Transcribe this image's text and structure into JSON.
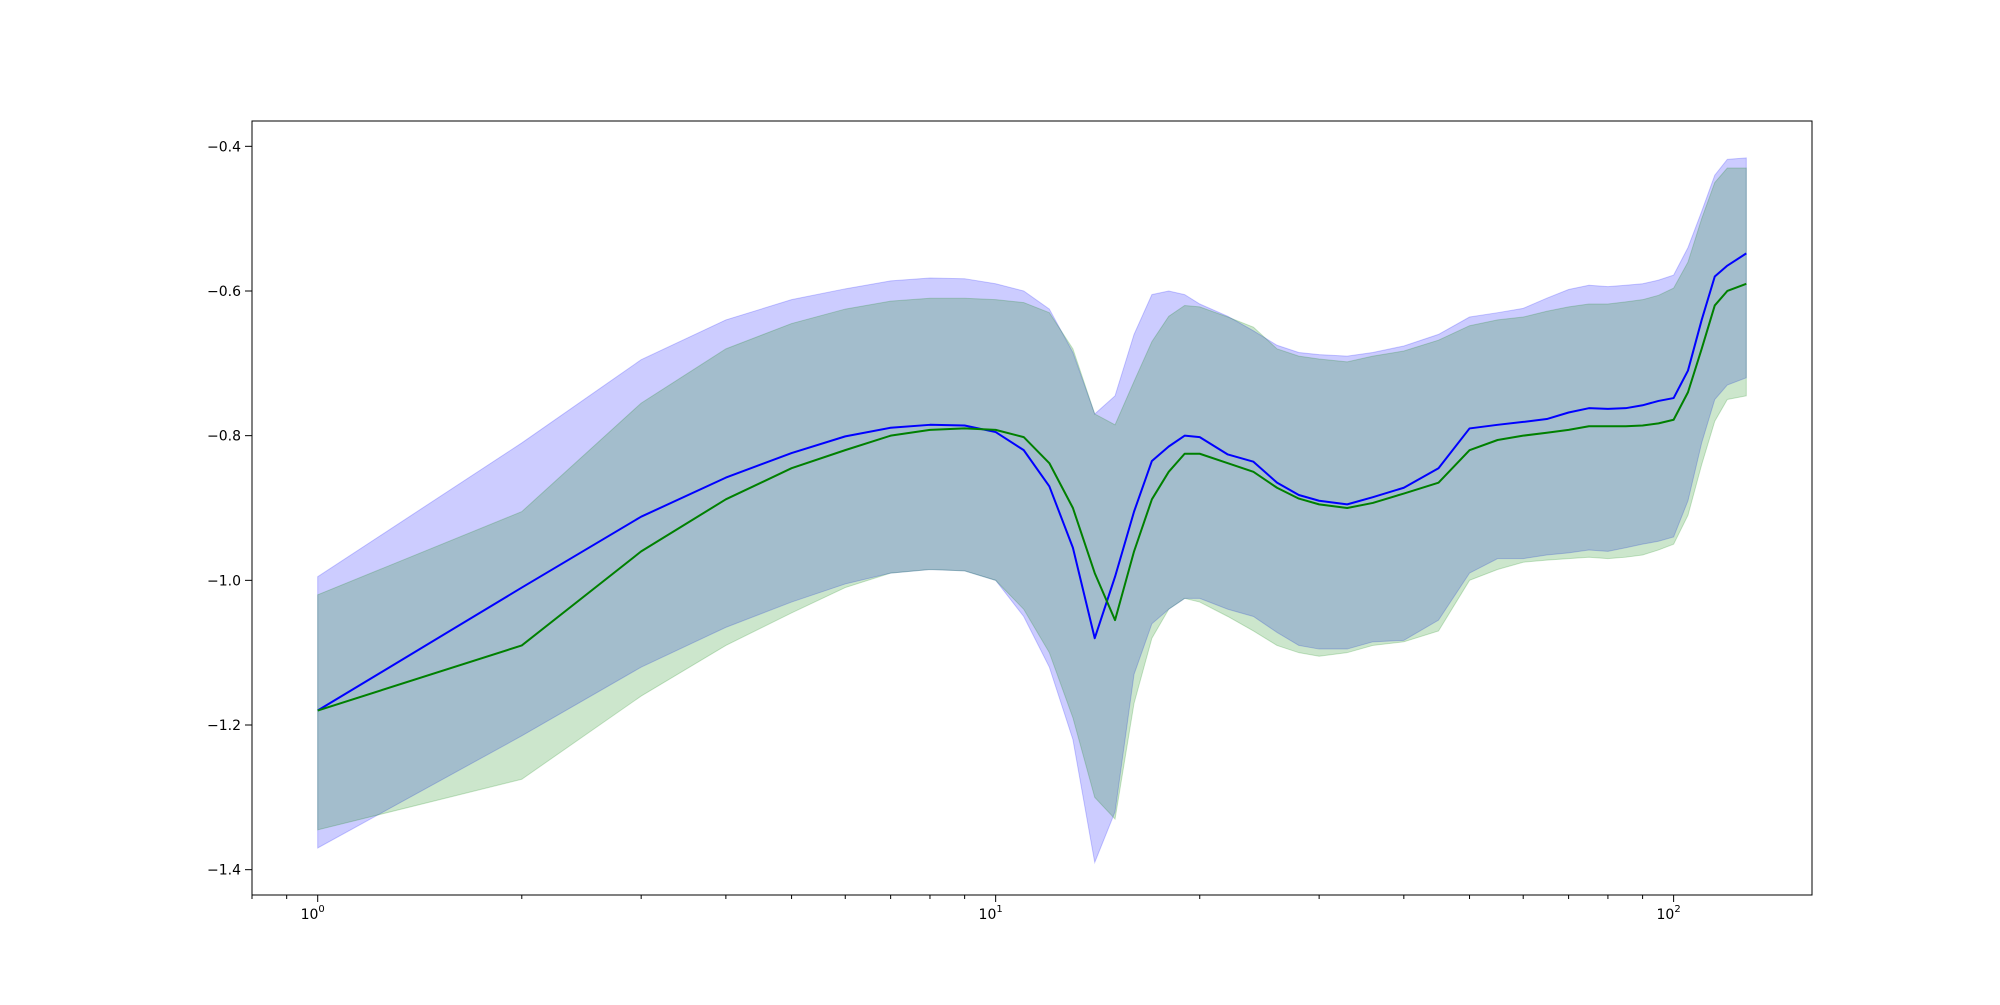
{
  "chart_data": {
    "type": "line",
    "title": "",
    "xlabel": "",
    "ylabel": "",
    "xscale": "log",
    "xlim": [
      0.8,
      160
    ],
    "ylim": [
      -1.435,
      -0.365
    ],
    "grid": false,
    "legend": "none",
    "x_ticks": [
      {
        "value": 1,
        "label": "10^0",
        "base": "10",
        "exp": "0"
      },
      {
        "value": 10,
        "label": "10^1",
        "base": "10",
        "exp": "1"
      },
      {
        "value": 100,
        "label": "10^2",
        "base": "10",
        "exp": "2"
      }
    ],
    "y_ticks": [
      {
        "value": -0.4,
        "label": "−0.4"
      },
      {
        "value": -0.6,
        "label": "−0.6"
      },
      {
        "value": -0.8,
        "label": "−0.8"
      },
      {
        "value": -1.0,
        "label": "−1.0"
      },
      {
        "value": -1.2,
        "label": "−1.2"
      },
      {
        "value": -1.4,
        "label": "−1.4"
      }
    ],
    "x": [
      1,
      2,
      3,
      4,
      5,
      6,
      7,
      8,
      9,
      10,
      11,
      12,
      13,
      14,
      15,
      16,
      17,
      18,
      19,
      20,
      22,
      24,
      26,
      28,
      30,
      33,
      36,
      40,
      45,
      50,
      55,
      60,
      65,
      70,
      75,
      80,
      85,
      90,
      95,
      100,
      105,
      110,
      115,
      120,
      128
    ],
    "series": [
      {
        "color": "#0000ff",
        "band_color": "#0000ff",
        "band_opacity": 0.2,
        "values": [
          -1.18,
          -1.01,
          -0.912,
          -0.858,
          -0.824,
          -0.801,
          -0.789,
          -0.785,
          -0.786,
          -0.795,
          -0.82,
          -0.87,
          -0.955,
          -1.08,
          -0.995,
          -0.905,
          -0.835,
          -0.815,
          -0.8,
          -0.802,
          -0.826,
          -0.836,
          -0.865,
          -0.882,
          -0.89,
          -0.895,
          -0.885,
          -0.872,
          -0.845,
          -0.79,
          -0.785,
          -0.781,
          -0.777,
          -0.768,
          -0.762,
          -0.763,
          -0.762,
          -0.758,
          -0.752,
          -0.748,
          -0.71,
          -0.64,
          -0.58,
          -0.565,
          -0.548
        ],
        "lower": [
          -1.37,
          -1.215,
          -1.12,
          -1.065,
          -1.03,
          -1.005,
          -0.99,
          -0.985,
          -0.987,
          -1.0,
          -1.05,
          -1.12,
          -1.22,
          -1.39,
          -1.32,
          -1.13,
          -1.06,
          -1.04,
          -1.025,
          -1.025,
          -1.04,
          -1.05,
          -1.072,
          -1.09,
          -1.095,
          -1.095,
          -1.085,
          -1.083,
          -1.055,
          -0.99,
          -0.97,
          -0.97,
          -0.965,
          -0.962,
          -0.958,
          -0.96,
          -0.955,
          -0.95,
          -0.946,
          -0.94,
          -0.89,
          -0.81,
          -0.75,
          -0.73,
          -0.72
        ],
        "upper": [
          -0.995,
          -0.81,
          -0.695,
          -0.64,
          -0.612,
          -0.597,
          -0.586,
          -0.582,
          -0.583,
          -0.59,
          -0.6,
          -0.625,
          -0.685,
          -0.77,
          -0.745,
          -0.66,
          -0.605,
          -0.6,
          -0.605,
          -0.618,
          -0.635,
          -0.655,
          -0.675,
          -0.685,
          -0.688,
          -0.69,
          -0.685,
          -0.676,
          -0.66,
          -0.636,
          -0.63,
          -0.624,
          -0.61,
          -0.598,
          -0.592,
          -0.594,
          -0.592,
          -0.59,
          -0.585,
          -0.578,
          -0.54,
          -0.49,
          -0.44,
          -0.418,
          -0.416
        ]
      },
      {
        "color": "#008000",
        "band_color": "#008000",
        "band_opacity": 0.2,
        "values": [
          -1.18,
          -1.09,
          -0.96,
          -0.888,
          -0.845,
          -0.82,
          -0.8,
          -0.792,
          -0.79,
          -0.792,
          -0.802,
          -0.838,
          -0.9,
          -0.99,
          -1.055,
          -0.96,
          -0.888,
          -0.85,
          -0.825,
          -0.825,
          -0.838,
          -0.85,
          -0.872,
          -0.887,
          -0.895,
          -0.9,
          -0.893,
          -0.88,
          -0.865,
          -0.82,
          -0.806,
          -0.8,
          -0.796,
          -0.792,
          -0.787,
          -0.787,
          -0.787,
          -0.786,
          -0.783,
          -0.778,
          -0.74,
          -0.68,
          -0.62,
          -0.6,
          -0.59
        ],
        "lower": [
          -1.345,
          -1.275,
          -1.16,
          -1.09,
          -1.045,
          -1.01,
          -0.99,
          -0.985,
          -0.987,
          -1.0,
          -1.04,
          -1.1,
          -1.19,
          -1.3,
          -1.33,
          -1.17,
          -1.08,
          -1.04,
          -1.025,
          -1.03,
          -1.05,
          -1.07,
          -1.09,
          -1.1,
          -1.105,
          -1.1,
          -1.09,
          -1.085,
          -1.07,
          -1.0,
          -0.985,
          -0.975,
          -0.972,
          -0.97,
          -0.968,
          -0.97,
          -0.968,
          -0.965,
          -0.958,
          -0.95,
          -0.91,
          -0.84,
          -0.78,
          -0.75,
          -0.745
        ],
        "upper": [
          -1.02,
          -0.905,
          -0.755,
          -0.68,
          -0.645,
          -0.625,
          -0.614,
          -0.61,
          -0.61,
          -0.612,
          -0.616,
          -0.63,
          -0.68,
          -0.77,
          -0.785,
          -0.725,
          -0.67,
          -0.635,
          -0.62,
          -0.622,
          -0.636,
          -0.65,
          -0.68,
          -0.69,
          -0.694,
          -0.698,
          -0.69,
          -0.683,
          -0.668,
          -0.648,
          -0.64,
          -0.636,
          -0.628,
          -0.622,
          -0.618,
          -0.618,
          -0.615,
          -0.612,
          -0.606,
          -0.596,
          -0.56,
          -0.5,
          -0.45,
          -0.43,
          -0.43
        ]
      }
    ]
  }
}
